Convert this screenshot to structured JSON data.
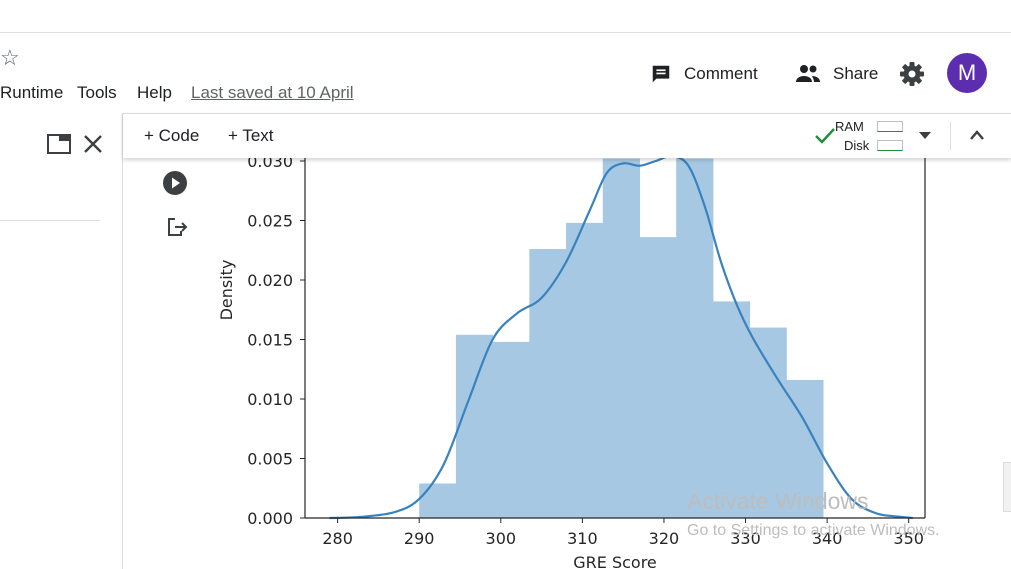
{
  "menu": {
    "runtime": "Runtime",
    "tools": "Tools",
    "help": "Help",
    "last_saved": "Last saved at 10 April"
  },
  "header": {
    "comment": "Comment",
    "share": "Share",
    "avatar_letter": "M",
    "avatar_color": "#5c2dae"
  },
  "toolbar": {
    "add_code": "+ Code",
    "add_text": "+ Text",
    "ram_label": "RAM",
    "disk_label": "Disk"
  },
  "watermark": {
    "line1": "Activate Windows",
    "line2": "Go to Settings to activate Windows."
  },
  "chart_data": {
    "type": "bar",
    "xlabel": "GRE Score",
    "ylabel": "Density",
    "xlim": [
      276,
      352
    ],
    "ylim": [
      0,
      0.03
    ],
    "xticks": [
      280,
      290,
      300,
      310,
      320,
      330,
      340,
      350
    ],
    "yticks": [
      0.0,
      0.005,
      0.01,
      0.015,
      0.02,
      0.025,
      0.03
    ],
    "xtick_labels": [
      "280",
      "290",
      "300",
      "310",
      "320",
      "330",
      "340",
      "350"
    ],
    "ytick_labels": [
      "0.000",
      "0.005",
      "0.010",
      "0.015",
      "0.020",
      "0.025",
      "0.030"
    ],
    "bin_edges": [
      290,
      294.5,
      299,
      303.5,
      308,
      312.5,
      317,
      321.5,
      326,
      330.5,
      335,
      339.5
    ],
    "bar_values": [
      0.0029,
      0.0154,
      0.0148,
      0.0226,
      0.0248,
      0.0302,
      0.0236,
      0.0302,
      0.0182,
      0.016,
      0.0116
    ],
    "bar_color": "#a6c8e2",
    "kde": {
      "color": "#3a82be",
      "x": [
        279,
        283,
        287,
        290,
        293,
        296,
        299,
        302,
        305,
        308,
        311,
        313,
        315,
        317,
        319,
        321,
        323,
        325,
        327,
        329,
        331,
        334,
        337,
        340,
        343,
        346,
        349,
        350.5
      ],
      "y": [
        0.0,
        0.0001,
        0.0005,
        0.0016,
        0.0045,
        0.0098,
        0.015,
        0.0172,
        0.0185,
        0.0215,
        0.026,
        0.029,
        0.0298,
        0.0296,
        0.03,
        0.0304,
        0.0296,
        0.0262,
        0.0215,
        0.0178,
        0.015,
        0.0116,
        0.0084,
        0.0046,
        0.0016,
        0.0004,
        0.0001,
        0.0
      ]
    }
  }
}
